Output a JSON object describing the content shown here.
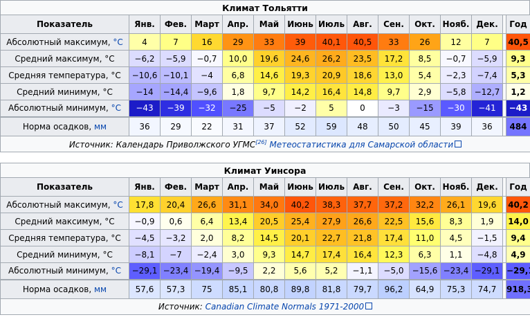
{
  "months": [
    "Янв.",
    "Фев.",
    "Март",
    "Апр.",
    "Май",
    "Июнь",
    "Июль",
    "Авг.",
    "Сен.",
    "Окт.",
    "Нояб.",
    "Дек."
  ],
  "year_label": "Год",
  "indicator_label": "Показатель",
  "unit_c": "°C",
  "unit_mm": "мм",
  "table1": {
    "title": "Климат Тольятти",
    "rows": [
      {
        "label": "Абсолютный максимум, ",
        "unit": "°C",
        "values": [
          "4",
          "7",
          "16",
          "29",
          "33",
          "39",
          "40,1",
          "40,5",
          "33",
          "26",
          "12",
          "7",
          "40,5"
        ],
        "colors": [
          "#ffffa8",
          "#ffff86",
          "#ffd930",
          "#ff9314",
          "#ff7c10",
          "#ff5c0a",
          "#ff570a",
          "#ff550a",
          "#ff7c10",
          "#ffa417",
          "#ffffa0",
          "#ffff86",
          "#ff550a"
        ]
      },
      {
        "label": "Средний максимум, °C",
        "values": [
          "−6,2",
          "−5,9",
          "−0,7",
          "10,0",
          "19,6",
          "24,6",
          "26,2",
          "23,5",
          "17,2",
          "8,5",
          "−0,7",
          "−5,9",
          "9,3"
        ],
        "colors": [
          "#dcdcff",
          "#dcdcff",
          "#f8f8ff",
          "#ffff8a",
          "#ffd12c",
          "#ffb520",
          "#ffab1c",
          "#ffbc22",
          "#ffe339",
          "#ffffa0",
          "#f8f8ff",
          "#dcdcff",
          "#ffff8c"
        ]
      },
      {
        "label": "Средняя температура, °C",
        "values": [
          "−10,6",
          "−10,1",
          "−4",
          "6,8",
          "14,6",
          "19,3",
          "20,9",
          "18,6",
          "13,0",
          "5,4",
          "−2,3",
          "−7,4",
          "5,3"
        ],
        "colors": [
          "#b8b8ff",
          "#bcbcff",
          "#e2e2ff",
          "#ffffa2",
          "#ffef46",
          "#ffd32d",
          "#ffc927",
          "#ffd631",
          "#fff14c",
          "#ffffa8",
          "#ececff",
          "#d2d2ff",
          "#ffffa8"
        ]
      },
      {
        "label": "Средний минимум, °C",
        "values": [
          "−14",
          "−14,4",
          "−9,6",
          "1,8",
          "9,7",
          "14,2",
          "16,4",
          "14,8",
          "9,7",
          "2,9",
          "−5,8",
          "−12,7",
          "1,2"
        ],
        "colors": [
          "#a6a6ff",
          "#a4a4ff",
          "#c4c4ff",
          "#ffffe2",
          "#ffff8a",
          "#ffef47",
          "#ffe43c",
          "#ffed44",
          "#ffff8a",
          "#ffffd2",
          "#dcdcff",
          "#aeaeff",
          "#ffffe8"
        ]
      },
      {
        "label": "Абсолютный минимум, ",
        "unit": "°C",
        "values": [
          "−43",
          "−39",
          "−32",
          "−25",
          "−5",
          "−2",
          "5",
          "0",
          "−3",
          "−15",
          "−30",
          "−41",
          "−43"
        ],
        "colors": [
          "#1c1cc8",
          "#2e2ee2",
          "#5050ff",
          "#7878ff",
          "#dcdcff",
          "#f0f0ff",
          "#ffffa8",
          "#ffffff",
          "#eaeaff",
          "#9a9aff",
          "#5a5aff",
          "#2424d6",
          "#1c1cc8"
        ],
        "textcolors": [
          "#ffffff",
          "#ffffff",
          "#ffffff",
          "#000000",
          "#000000",
          "#000000",
          "#000000",
          "#000000",
          "#000000",
          "#000000",
          "#ffffff",
          "#ffffff",
          "#ffffff"
        ]
      },
      {
        "label": "Норма осадков, ",
        "unit": "мм",
        "values": [
          "36",
          "29",
          "22",
          "31",
          "37",
          "52",
          "59",
          "48",
          "50",
          "45",
          "39",
          "36",
          "484"
        ],
        "colors": [
          "#f2f6ff",
          "#f6f9ff",
          "#f9fbff",
          "#f4f7ff",
          "#eef3ff",
          "#e2ebff",
          "#dce7ff",
          "#e6eeff",
          "#e4ecff",
          "#e8efff",
          "#edf2ff",
          "#f2f6ff",
          "#7575ff"
        ]
      }
    ],
    "source_prefix": "Источник: Календарь Приволжского УГМС",
    "source_ref": "[26]",
    "source_link": "Метеостатистика для Самарской области"
  },
  "table2": {
    "title": "Климат Уинсора",
    "rows": [
      {
        "label": "Абсолютный максимум, ",
        "unit": "°C",
        "values": [
          "17,8",
          "20,4",
          "26,6",
          "31,1",
          "34,0",
          "40,2",
          "38,3",
          "37,7",
          "37,2",
          "32,2",
          "26,1",
          "19,6",
          "40,2"
        ],
        "colors": [
          "#ffe033",
          "#ffd12d",
          "#ffa81a",
          "#ff8a13",
          "#ff7810",
          "#ff560a",
          "#ff620c",
          "#ff650c",
          "#ff680d",
          "#ff8612",
          "#ffab1c",
          "#ffd730",
          "#ff560a"
        ]
      },
      {
        "label": "Средний максимум, °C",
        "values": [
          "−0,9",
          "0,6",
          "6,4",
          "13,4",
          "20,5",
          "25,4",
          "27,9",
          "26,6",
          "22,5",
          "15,6",
          "8,3",
          "1,9",
          "14,0"
        ],
        "colors": [
          "#f6f6ff",
          "#ffffee",
          "#ffffa6",
          "#fff54e",
          "#ffcd2a",
          "#ffb11f",
          "#ffa119",
          "#ffa81a",
          "#ffc124",
          "#ffe93f",
          "#ffff96",
          "#ffffd6",
          "#fff24a"
        ]
      },
      {
        "label": "Средняя температура, °C",
        "values": [
          "−4,5",
          "−3,2",
          "2,0",
          "8,2",
          "14,5",
          "20,1",
          "22,7",
          "21,8",
          "17,4",
          "11,0",
          "4,5",
          "−1,5",
          "9,4"
        ],
        "colors": [
          "#e0e0ff",
          "#e6e6ff",
          "#ffffdc",
          "#ffff98",
          "#fff047",
          "#ffcf2b",
          "#ffbe22",
          "#ffc326",
          "#ffe03a",
          "#ffff70",
          "#ffffbc",
          "#f2f2ff",
          "#ffff8c"
        ]
      },
      {
        "label": "Средний минимум, °C",
        "values": [
          "−8,1",
          "−7",
          "−2,4",
          "3,0",
          "9,3",
          "14,7",
          "17,4",
          "16,4",
          "12,3",
          "6,3",
          "1,1",
          "−4,8",
          "4,9"
        ],
        "colors": [
          "#ccccff",
          "#d4d4ff",
          "#ececff",
          "#ffffd0",
          "#ffff8c",
          "#ffed45",
          "#ffe03a",
          "#ffe43c",
          "#fff95a",
          "#ffffa6",
          "#ffffe6",
          "#dedeff",
          "#ffffb4"
        ]
      },
      {
        "label": "Абсолютный минимум, ",
        "unit": "°C",
        "values": [
          "−29,1",
          "−23,4",
          "−19,4",
          "−9,5",
          "2,2",
          "5,6",
          "5,2",
          "−1,1",
          "−5,0",
          "−15,6",
          "−23,4",
          "−29,1"
        ],
        "colors": [
          "#5e5eff",
          "#8080ff",
          "#9494ff",
          "#c8c8ff",
          "#ffffd8",
          "#ffffae",
          "#ffffb2",
          "#f4f4ff",
          "#dcdcff",
          "#a2a2ff",
          "#8080ff",
          "#5e5eff"
        ],
        "textcolors": [
          "#000000",
          "#000000",
          "#000000",
          "#000000",
          "#000000",
          "#000000",
          "#000000",
          "#000000",
          "#000000",
          "#000000",
          "#000000",
          "#000000"
        ],
        "offset": true
      },
      {
        "label": "Норма осадков, ",
        "unit": "мм",
        "values": [
          "57,6",
          "57,3",
          "75",
          "85,1",
          "80,8",
          "89,8",
          "81,8",
          "79,7",
          "96,2",
          "64,9",
          "75,3",
          "74,7",
          "918,3"
        ],
        "colors": [
          "#dce6ff",
          "#dce6ff",
          "#cedcff",
          "#c6d6ff",
          "#c9d8ff",
          "#c2d3ff",
          "#c8d8ff",
          "#cad9ff",
          "#bccfff",
          "#d6e2ff",
          "#cedcff",
          "#cedcff",
          "#7070ff"
        ]
      }
    ],
    "source_prefix": "Источник: ",
    "source_link": "Canadian Climate Normals 1971-2000"
  }
}
